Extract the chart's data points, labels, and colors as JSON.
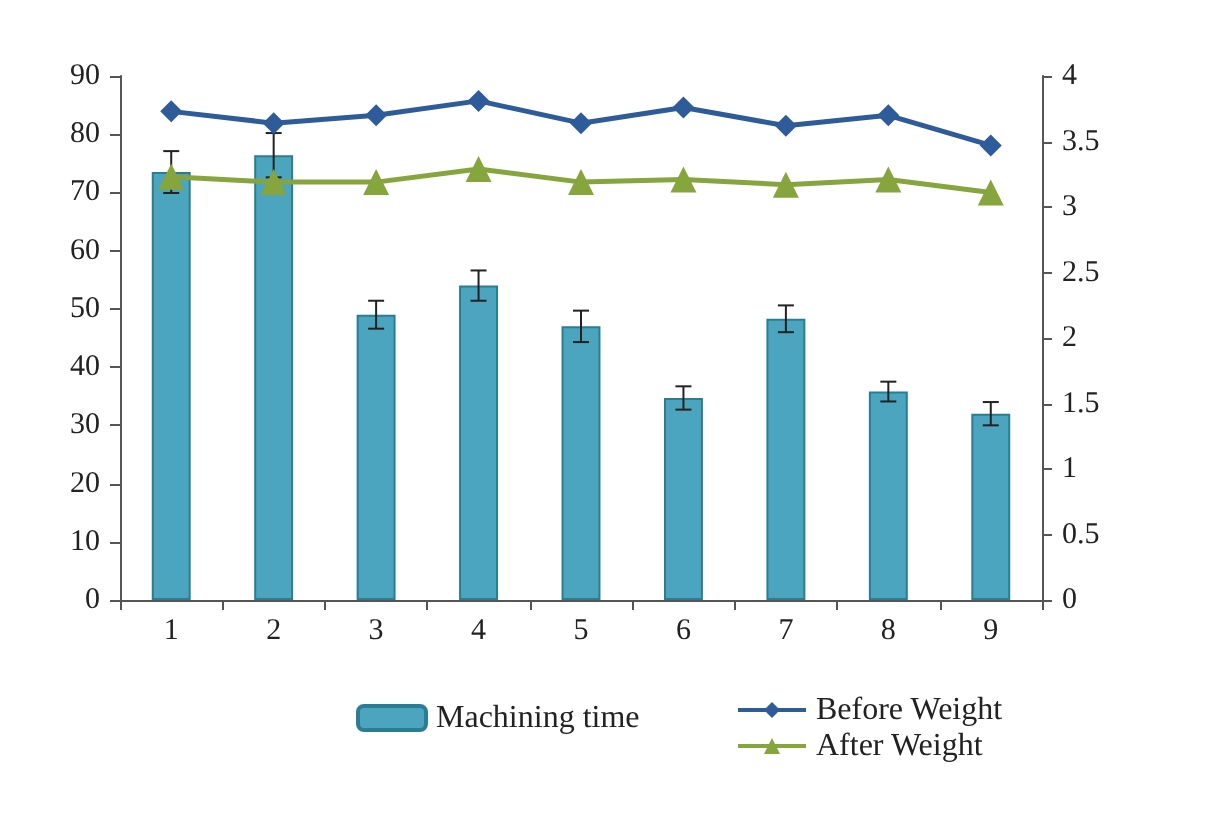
{
  "chart_data": {
    "type": "bar",
    "categories": [
      "1",
      "2",
      "3",
      "4",
      "5",
      "6",
      "7",
      "8",
      "9"
    ],
    "series": [
      {
        "name": "Machining time",
        "color": "#4ba5be",
        "values": [
          73.5,
          76.4,
          49.0,
          54.0,
          47.0,
          34.7,
          48.3,
          35.8,
          32.0
        ],
        "errors": [
          3.6,
          3.8,
          2.4,
          2.6,
          2.7,
          2.0,
          2.3,
          1.7,
          2.0
        ]
      },
      {
        "name": "Before Weight",
        "type": "line",
        "axis": "y2",
        "color": "#2e5c9a",
        "marker": "diamond",
        "values": [
          3.73,
          3.64,
          3.7,
          3.81,
          3.64,
          3.76,
          3.62,
          3.7,
          3.47
        ]
      },
      {
        "name": "After Weight",
        "type": "line",
        "axis": "y2",
        "color": "#86a53c",
        "marker": "triangle",
        "values": [
          3.23,
          3.19,
          3.19,
          3.29,
          3.19,
          3.21,
          3.17,
          3.21,
          3.11
        ]
      }
    ],
    "ylim": [
      0,
      90
    ],
    "yticks": [
      0,
      10,
      20,
      30,
      40,
      50,
      60,
      70,
      80,
      90
    ],
    "y2lim": [
      0,
      4
    ],
    "y2ticks": [
      0,
      0.5,
      1,
      1.5,
      2,
      2.5,
      3,
      3.5,
      4
    ],
    "grid": false,
    "legend": "bottom",
    "line_style": "solid"
  }
}
